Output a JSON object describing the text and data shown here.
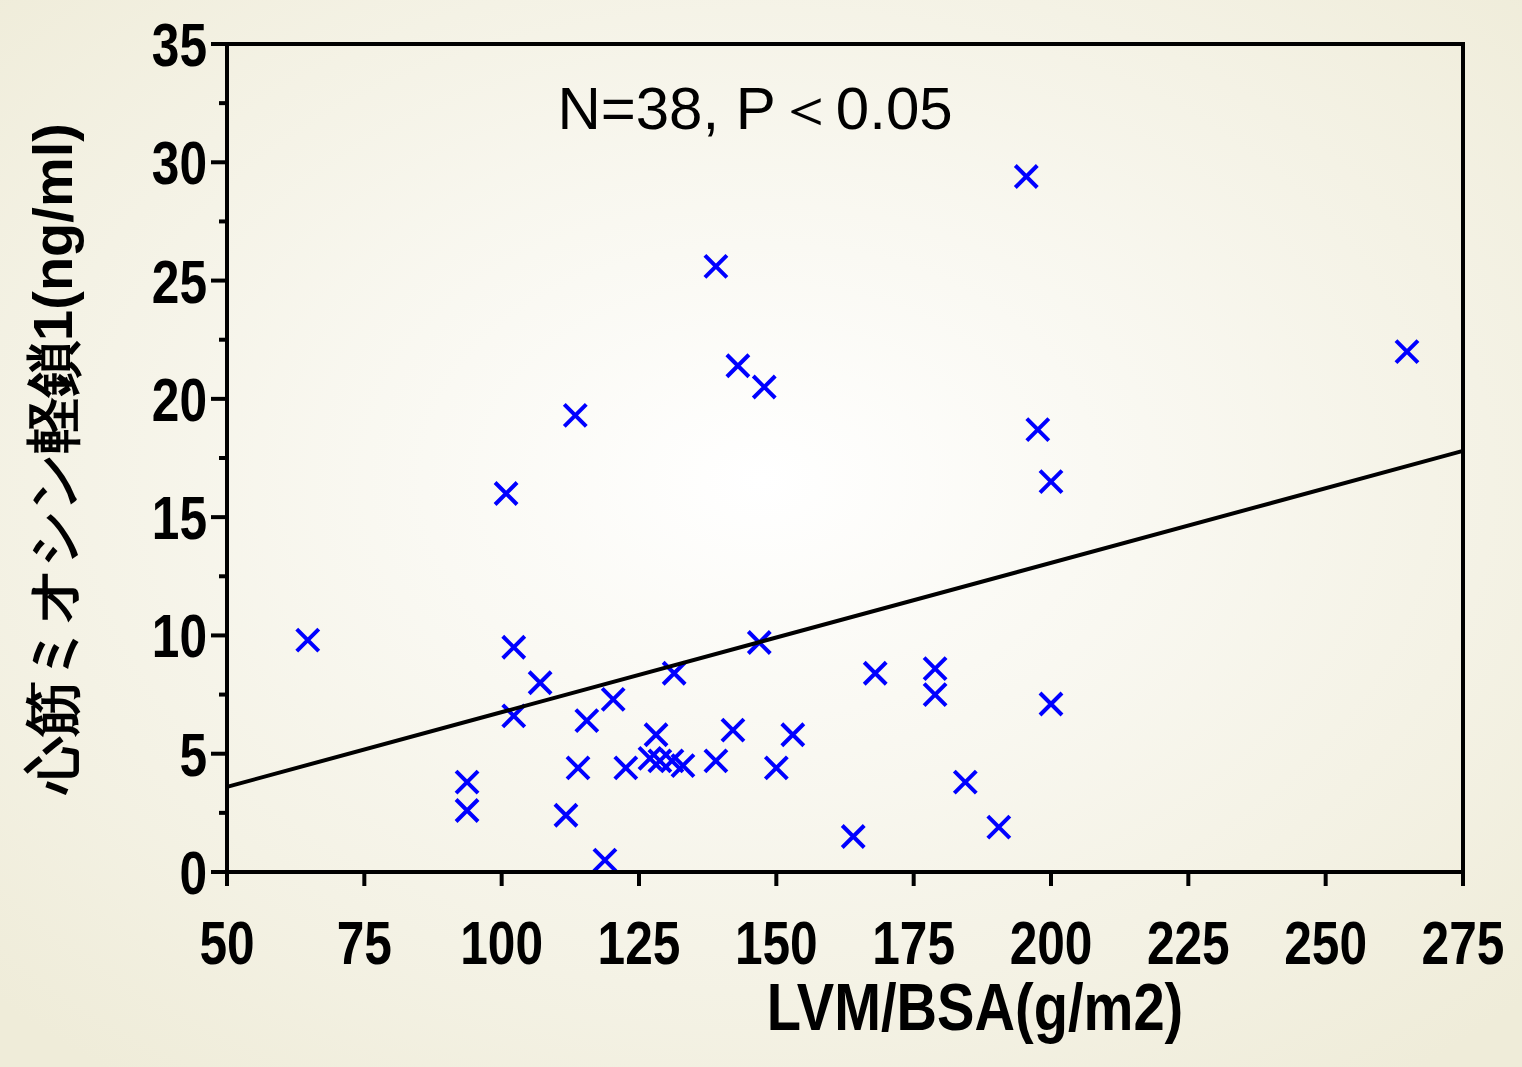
{
  "chart_data": {
    "type": "scatter",
    "xlabel": "LVM/BSA(g/m2)",
    "ylabel": "心筋ミオシン軽鎖1(ng/ml)",
    "annotations": [
      "N=38, P＜0.05"
    ],
    "xlim": [
      50,
      275
    ],
    "xticks": [
      50,
      75,
      100,
      125,
      150,
      175,
      200,
      225,
      250,
      275
    ],
    "ylim": [
      0,
      35
    ],
    "yticks": [
      0,
      {
        "value": 2.5,
        "label": null
      },
      5,
      {
        "value": 7.5,
        "label": null
      },
      10,
      {
        "value": 12.5,
        "label": null
      },
      15,
      {
        "value": 17.5,
        "label": null
      },
      20,
      {
        "value": 22.5,
        "label": null
      },
      25,
      {
        "value": 27.5,
        "label": null
      },
      30,
      {
        "value": 32.5,
        "label": null
      },
      35
    ],
    "series": [
      {
        "marker": "cross",
        "color": "#0000ff",
        "x": [
          64.7,
          93.7,
          93.7,
          100.8,
          102.2,
          102.2,
          107.0,
          111.7,
          113.4,
          113.9,
          115.5,
          118.8,
          120.3,
          122.6,
          127.0,
          128.1,
          128.8,
          131.0,
          131.4,
          133.0,
          139.0,
          139.0,
          142.1,
          143.0,
          146.9,
          147.8,
          150.0,
          153.0,
          164.0,
          168.0,
          178.9,
          178.9,
          184.4,
          190.5,
          195.5,
          197.6,
          200.0,
          200.0,
          264.8
        ],
        "values": [
          9.8,
          3.8,
          2.6,
          16.0,
          9.5,
          6.6,
          8.0,
          2.4,
          19.3,
          4.4,
          6.4,
          0.5,
          7.3,
          4.4,
          4.8,
          5.8,
          4.7,
          4.7,
          8.4,
          4.5,
          25.6,
          4.7,
          6.0,
          21.4,
          9.7,
          20.5,
          4.4,
          5.8,
          1.5,
          8.4,
          8.6,
          7.5,
          3.8,
          1.9,
          29.4,
          18.7,
          16.5,
          7.1,
          22.0
        ]
      },
      {
        "type": "line",
        "color": "#000000",
        "line_style": "solid",
        "x": [
          50,
          275
        ],
        "values": [
          3.6,
          17.8
        ]
      }
    ]
  }
}
